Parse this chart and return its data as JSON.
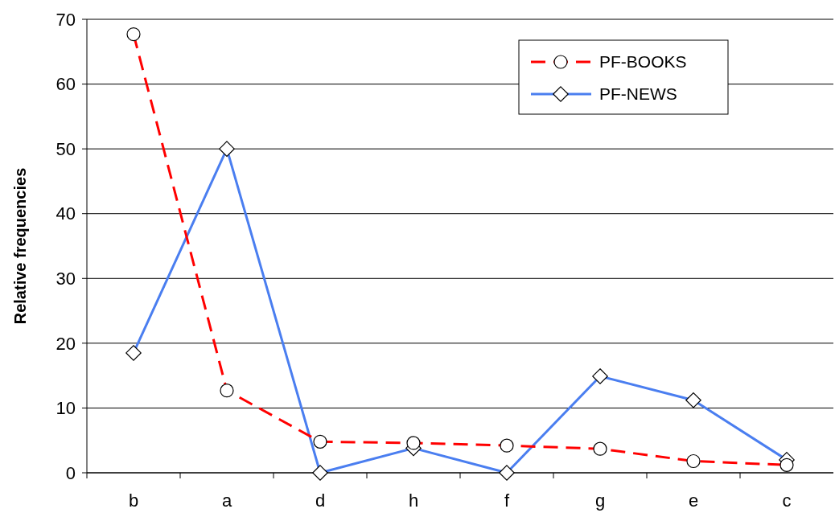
{
  "chart_data": {
    "type": "line",
    "ylabel": "Relative frequencies",
    "categories": [
      "b",
      "a",
      "d",
      "h",
      "f",
      "g",
      "e",
      "c"
    ],
    "series": [
      {
        "name": "PF-BOOKS",
        "color": "#ff0000",
        "marker": "circle",
        "line_style": "dashed",
        "values": [
          67.7,
          12.7,
          4.8,
          4.6,
          4.2,
          3.7,
          1.8,
          1.2
        ]
      },
      {
        "name": "PF-NEWS",
        "color": "#4a7ef0",
        "marker": "diamond",
        "line_style": "solid",
        "values": [
          18.5,
          50,
          0,
          3.8,
          0,
          14.9,
          11.2,
          2.0
        ]
      }
    ],
    "ylim": [
      0,
      70
    ],
    "yticks": [
      0,
      10,
      20,
      30,
      40,
      50,
      60,
      70
    ],
    "grid": "y",
    "legend": "top right"
  }
}
